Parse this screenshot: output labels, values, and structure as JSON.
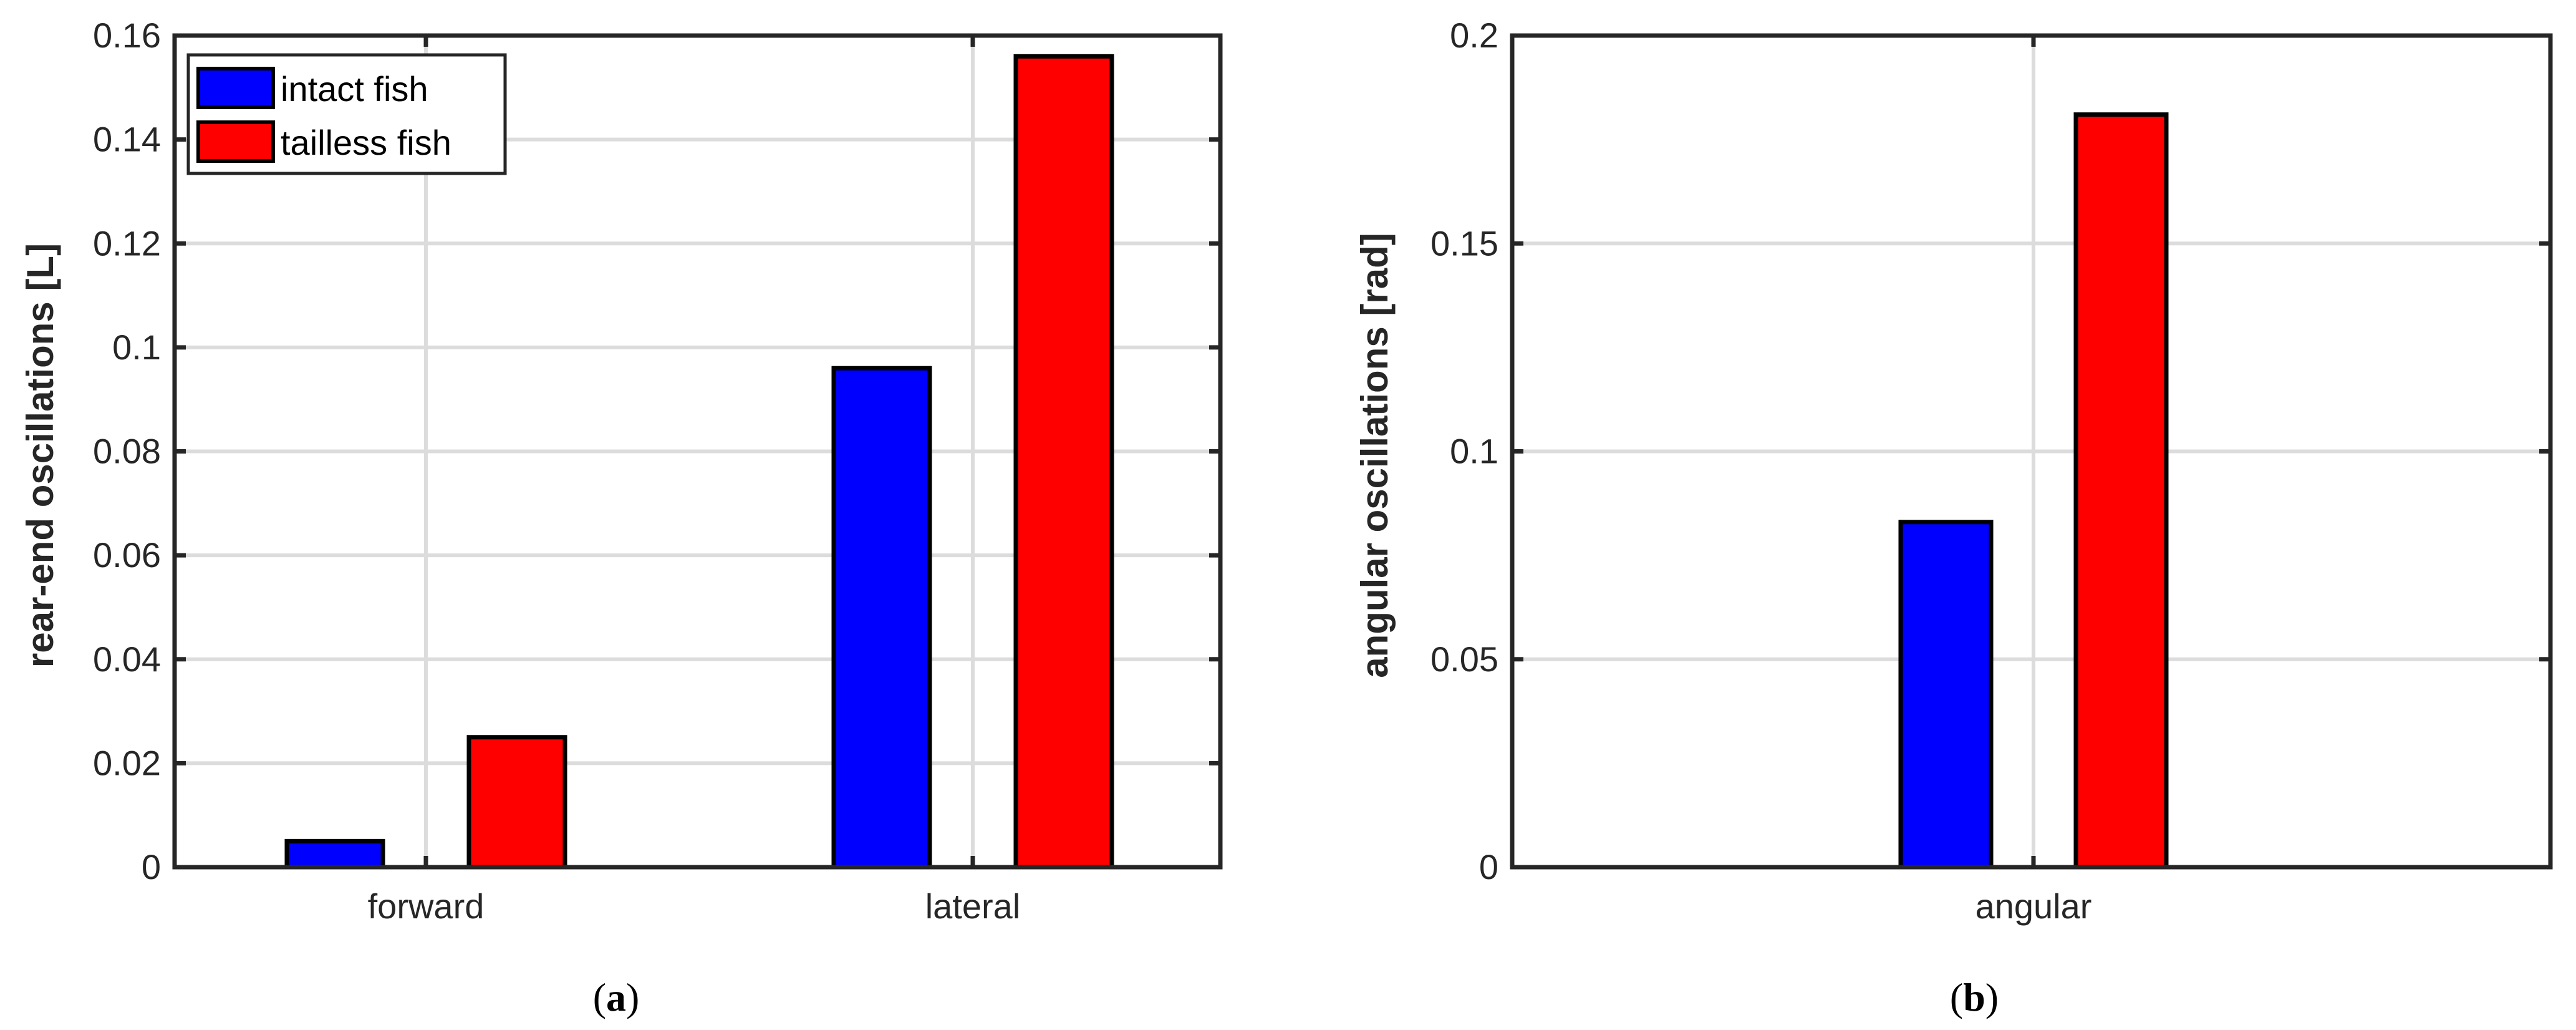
{
  "chart_data": [
    {
      "type": "bar",
      "panel_label": "a",
      "title": "",
      "xlabel": "",
      "ylabel": "rear-end oscillations [L]",
      "categories": [
        "forward",
        "lateral"
      ],
      "series": [
        {
          "name": "intact fish",
          "color": "#0000ff",
          "values": [
            0.005,
            0.096
          ]
        },
        {
          "name": "tailless fish",
          "color": "#ff0000",
          "values": [
            0.025,
            0.156
          ]
        }
      ],
      "ylim": [
        0,
        0.16
      ],
      "yticks": [
        0,
        0.02,
        0.04,
        0.06,
        0.08,
        0.1,
        0.12,
        0.14,
        0.16
      ],
      "ytick_labels": [
        "0",
        "0.02",
        "0.04",
        "0.06",
        "0.08",
        "0.1",
        "0.12",
        "0.14",
        "0.16"
      ],
      "grid": true,
      "legend": {
        "placement": "top-left",
        "entries": [
          "intact fish",
          "tailless fish"
        ]
      }
    },
    {
      "type": "bar",
      "panel_label": "b",
      "title": "",
      "xlabel": "",
      "ylabel": "angular oscillations [rad]",
      "categories": [
        "angular"
      ],
      "series": [
        {
          "name": "intact fish",
          "color": "#0000ff",
          "values": [
            0.083
          ]
        },
        {
          "name": "tailless fish",
          "color": "#ff0000",
          "values": [
            0.181
          ]
        }
      ],
      "ylim": [
        0,
        0.2
      ],
      "yticks": [
        0,
        0.05,
        0.1,
        0.15,
        0.2
      ],
      "ytick_labels": [
        "0",
        "0.05",
        "0.1",
        "0.15",
        "0.2"
      ],
      "grid": true
    }
  ]
}
